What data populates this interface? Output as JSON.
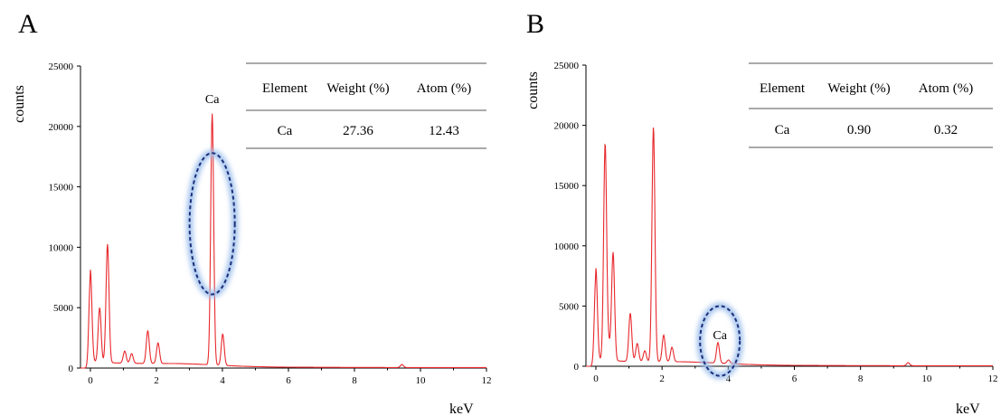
{
  "chart_data": [
    {
      "panel": "A",
      "type": "line",
      "title": "",
      "xlabel": "keV",
      "ylabel": "counts",
      "xlim": [
        -0.3,
        12
      ],
      "ylim": [
        0,
        25000
      ],
      "xticks": [
        0,
        2,
        4,
        6,
        8,
        10,
        12
      ],
      "yticks": [
        0,
        5000,
        10000,
        15000,
        20000,
        25000
      ],
      "line_color": "#e8282c",
      "grid": false,
      "peaks": [
        {
          "x": 0.0,
          "y": 7600
        },
        {
          "x": 0.28,
          "y": 4500
        },
        {
          "x": 0.52,
          "y": 9800
        },
        {
          "x": 1.04,
          "y": 1000
        },
        {
          "x": 1.25,
          "y": 800
        },
        {
          "x": 1.74,
          "y": 2700
        },
        {
          "x": 2.05,
          "y": 1700
        },
        {
          "x": 3.69,
          "y": 20800
        },
        {
          "x": 4.01,
          "y": 2600
        },
        {
          "x": 9.44,
          "y": 250
        }
      ],
      "peak_annotation": {
        "label": "Ca",
        "x": 3.69,
        "ellipse_y_range": [
          6100,
          17800
        ]
      },
      "table": {
        "headers": [
          "Element",
          "Weight (%)",
          "Atom (%)"
        ],
        "rows": [
          [
            "Ca",
            "27.36",
            "12.43"
          ]
        ]
      }
    },
    {
      "panel": "B",
      "type": "line",
      "title": "",
      "xlabel": "keV",
      "ylabel": "counts",
      "xlim": [
        -0.3,
        12
      ],
      "ylim": [
        0,
        25000
      ],
      "xticks": [
        0,
        2,
        4,
        6,
        8,
        10,
        12
      ],
      "yticks": [
        0,
        5000,
        10000,
        15000,
        20000,
        25000
      ],
      "line_color": "#e8282c",
      "grid": false,
      "peaks": [
        {
          "x": 0.0,
          "y": 7600
        },
        {
          "x": 0.28,
          "y": 18000
        },
        {
          "x": 0.39,
          "y": 1200
        },
        {
          "x": 0.52,
          "y": 9000
        },
        {
          "x": 1.04,
          "y": 4000
        },
        {
          "x": 1.25,
          "y": 1500
        },
        {
          "x": 1.48,
          "y": 900
        },
        {
          "x": 1.74,
          "y": 19500
        },
        {
          "x": 2.05,
          "y": 2200
        },
        {
          "x": 2.3,
          "y": 1200
        },
        {
          "x": 3.69,
          "y": 1700
        },
        {
          "x": 4.01,
          "y": 300
        },
        {
          "x": 9.44,
          "y": 250
        }
      ],
      "peak_annotation": {
        "label": "Ca",
        "x": 3.75,
        "ellipse_y_range": [
          -800,
          5000
        ]
      },
      "table": {
        "headers": [
          "Element",
          "Weight (%)",
          "Atom (%)"
        ],
        "rows": [
          [
            "Ca",
            "0.90",
            "0.32"
          ]
        ]
      }
    }
  ]
}
